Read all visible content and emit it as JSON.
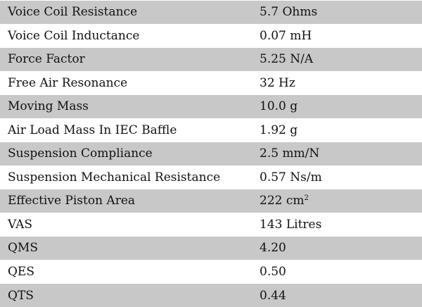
{
  "specs": [
    {
      "param": "Voice Coil Resistance",
      "value": "5.7 Ohms"
    },
    {
      "param": "Voice Coil Inductance",
      "value": "0.07 mH"
    },
    {
      "param": "Force Factor",
      "value": "5.25 N/A"
    },
    {
      "param": "Free Air Resonance",
      "value": "32 Hz"
    },
    {
      "param": "Moving Mass",
      "value": "10.0 g"
    },
    {
      "param": "Air Load Mass In IEC Baffle",
      "value": "1.92 g"
    },
    {
      "param": "Suspension Compliance",
      "value": "2.5 mm/N"
    },
    {
      "param": "Suspension Mechanical Resistance",
      "value": "0.57 Ns/m"
    },
    {
      "param": "Effective Piston Area",
      "value": "222 cm",
      "value_sup": "2"
    },
    {
      "param": "VAS",
      "value": "143 Litres"
    },
    {
      "param": "QMS",
      "value": "4.20"
    },
    {
      "param": "QES",
      "value": "0.50"
    },
    {
      "param": "QTS",
      "value": "0.44"
    }
  ],
  "colors": {
    "shaded_row": "#c8c8c8",
    "plain_row": "#ffffff",
    "text": "#111111"
  }
}
